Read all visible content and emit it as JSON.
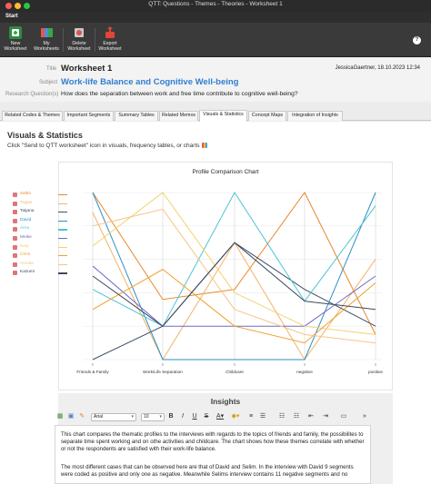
{
  "window": {
    "title": "QTT: Questions - Themes - Theories - Worksheet 1"
  },
  "ribbon": {
    "tab": "Start",
    "buttons": [
      {
        "label_line1": "New",
        "label_line2": "Worksheet",
        "color": "#3aa54a"
      },
      {
        "label_line1": "My",
        "label_line2": "Worksheets",
        "color": "#5c6bd6"
      },
      {
        "label_line1": "Delete",
        "label_line2": "Worksheet",
        "color": "#d9534f"
      },
      {
        "label_line1": "Export",
        "label_line2": "Worksheet",
        "color": "#e0453c"
      }
    ],
    "help": "?"
  },
  "worksheet": {
    "title_label": "Title",
    "title": "Worksheet 1",
    "author": "JessicaGaertner, 18.10.2023 12:34",
    "subject_label": "Subject",
    "subject": "Work-life Balance and Cognitive Well-being",
    "rq_label": "Research Question(s)",
    "rq": "How does the separation between work and free time contribute to cognitive well-being?"
  },
  "tabs": [
    "Related Codes & Themes",
    "Important Segments",
    "Summary Tables",
    "Related Memos",
    "Visuals & Statistics",
    "Concept Maps",
    "Integration of Insights"
  ],
  "active_tab": 4,
  "visuals": {
    "heading": "Visuals & Statistics",
    "instruction": "Click \"Send to QTT worksheet\" icon in visuals, frequency tables, or charts"
  },
  "chart_data": {
    "type": "line",
    "title": "Profile Comparison Chart",
    "categories": [
      "Friends & Family",
      "Work/Life Separation",
      "Childcare",
      "negative",
      "positive"
    ],
    "zero_label": "0",
    "series": [
      {
        "name": "Selim",
        "color": "#e8872b",
        "values": [
          100,
          36,
          42,
          100,
          15
        ]
      },
      {
        "name": "Tugan",
        "color": "#f2b366",
        "values": [
          88,
          0,
          70,
          0,
          60
        ]
      },
      {
        "name": "Tatjana",
        "color": "#3d5068",
        "values": [
          0,
          20,
          70,
          42,
          20
        ]
      },
      {
        "name": "David",
        "color": "#2a8fc7",
        "values": [
          100,
          0,
          0,
          0,
          100
        ]
      },
      {
        "name": "Arne",
        "color": "#4cc4d4",
        "values": [
          42,
          20,
          100,
          35,
          92
        ]
      },
      {
        "name": "Meike",
        "color": "#6b6bc9",
        "values": [
          56,
          20,
          20,
          20,
          50
        ]
      },
      {
        "name": "Ilvay",
        "color": "#f2d36b",
        "values": [
          68,
          100,
          40,
          20,
          15
        ]
      },
      {
        "name": "Chris",
        "color": "#f0a030",
        "values": [
          30,
          54,
          20,
          10,
          46
        ]
      },
      {
        "name": "Amalia",
        "color": "#f5c48a",
        "values": [
          80,
          90,
          30,
          15,
          10
        ]
      },
      {
        "name": "Kazumi",
        "color": "#3b4a5c",
        "values": [
          50,
          20,
          70,
          35,
          30
        ]
      }
    ],
    "ylim": [
      0,
      100
    ],
    "grid": true,
    "legend": "left"
  },
  "insights": {
    "title": "Insights",
    "font": "Arial",
    "size": "10",
    "paragraph1": "This chart compares the thematic profiles to the interviews with regards to the topics of friends and family, the possibilites to separate time spent working and on othe activities and childcare. The chart shows how these themes correlate with whether or not the respondents are satisfied with their work-life balance.",
    "paragraph2": "The most different cases that can be observed here are that of David and Selim. In the interview with David 9 segments were coded as positive and only one as negative. Meanwhile Selims interview contains 11 negative segments and no"
  }
}
